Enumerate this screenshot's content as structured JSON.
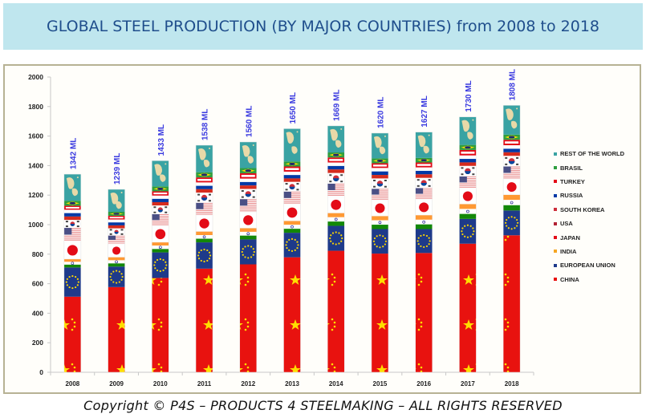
{
  "header": {
    "title": "GLOBAL STEEL PRODUCTION (BY MAJOR COUNTRIES) from 2008 to 2018"
  },
  "footer": {
    "copyright": "Copyright © P4S – PRODUCTS 4 STEELMAKING – ALL RIGHTS RESERVED"
  },
  "chart_data": {
    "type": "bar",
    "stacked": true,
    "title": "GLOBAL STEEL PRODUCTION (BY MAJOR COUNTRIES) from 2008 to 2018",
    "xlabel": "",
    "ylabel": "",
    "ylim": [
      0,
      2000
    ],
    "yticks": [
      0,
      200,
      400,
      600,
      800,
      1000,
      1200,
      1400,
      1600,
      1800,
      2000
    ],
    "grid": false,
    "legend_position": "right",
    "categories": [
      "2008",
      "2009",
      "2010",
      "2011",
      "2012",
      "2013",
      "2014",
      "2015",
      "2016",
      "2017",
      "2018"
    ],
    "totals": [
      1342,
      1239,
      1433,
      1538,
      1560,
      1650,
      1669,
      1620,
      1627,
      1730,
      1808
    ],
    "total_labels": [
      "1342 ML",
      "1239 ML",
      "1433 ML",
      "1538 ML",
      "1560 ML",
      "1650 ML",
      "1669 ML",
      "1620 ML",
      "1627 ML",
      "1730 ML",
      "1808 ML"
    ],
    "series": [
      {
        "name": "CHINA",
        "color": "#e8120f",
        "values": [
          512,
          577,
          639,
          702,
          731,
          779,
          823,
          804,
          808,
          871,
          928
        ]
      },
      {
        "name": "EUROPEAN UNION",
        "color": "#1e3a8a",
        "values": [
          198,
          139,
          173,
          178,
          169,
          166,
          169,
          166,
          162,
          168,
          168
        ]
      },
      {
        "name": "INDIA",
        "color": "#f5a623",
        "values": [
          57,
          64,
          69,
          74,
          77,
          81,
          87,
          89,
          95,
          101,
          107
        ]
      },
      {
        "name": "JAPAN",
        "color": "#e30b17",
        "values": [
          119,
          88,
          110,
          108,
          107,
          111,
          111,
          105,
          105,
          105,
          104
        ]
      },
      {
        "name": "USA",
        "color": "#b22234",
        "values": [
          92,
          58,
          80,
          86,
          89,
          87,
          88,
          79,
          78,
          82,
          87
        ]
      },
      {
        "name": "SOUTH KOREA",
        "color": "#cd2e3a",
        "values": [
          54,
          49,
          59,
          69,
          69,
          66,
          72,
          70,
          69,
          71,
          72
        ]
      },
      {
        "name": "RUSSIA",
        "color": "#0039a6",
        "values": [
          69,
          60,
          67,
          69,
          70,
          69,
          71,
          71,
          71,
          71,
          72
        ]
      },
      {
        "name": "TURKEY",
        "color": "#e30a17",
        "values": [
          27,
          25,
          29,
          34,
          36,
          35,
          34,
          32,
          33,
          37,
          37
        ]
      },
      {
        "name": "BRASIL",
        "color": "#2e9e3f",
        "values": [
          34,
          27,
          33,
          35,
          35,
          34,
          34,
          33,
          31,
          34,
          35
        ]
      },
      {
        "name": "REST OF THE WORLD",
        "color": "#3aa3a3",
        "values": [
          180,
          152,
          174,
          183,
          177,
          222,
          180,
          171,
          175,
          190,
          198
        ]
      }
    ]
  }
}
